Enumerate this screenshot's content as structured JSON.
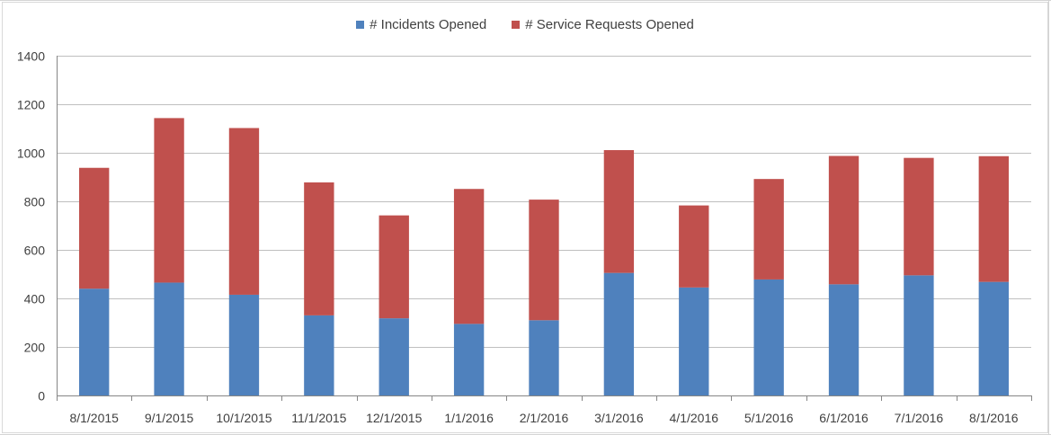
{
  "chart_data": {
    "type": "bar",
    "stacked": true,
    "categories": [
      "8/1/2015",
      "9/1/2015",
      "10/1/2015",
      "11/1/2015",
      "12/1/2015",
      "1/1/2016",
      "2/1/2016",
      "3/1/2016",
      "4/1/2016",
      "5/1/2016",
      "6/1/2016",
      "7/1/2016",
      "8/1/2016"
    ],
    "series": [
      {
        "name": "# Incidents Opened",
        "color": "#4f81bd",
        "values": [
          440,
          465,
          415,
          330,
          318,
          295,
          310,
          505,
          445,
          478,
          458,
          495,
          468
        ]
      },
      {
        "name": "# Service Requests Opened",
        "color": "#c0504d",
        "values": [
          498,
          678,
          687,
          548,
          424,
          556,
          497,
          506,
          338,
          414,
          529,
          484,
          518
        ]
      }
    ],
    "title": "",
    "xlabel": "",
    "ylabel": "",
    "ylim": [
      0,
      1400
    ],
    "yticks": [
      0,
      200,
      400,
      600,
      800,
      1000,
      1200,
      1400
    ],
    "grid": true,
    "legend_position": "top"
  }
}
